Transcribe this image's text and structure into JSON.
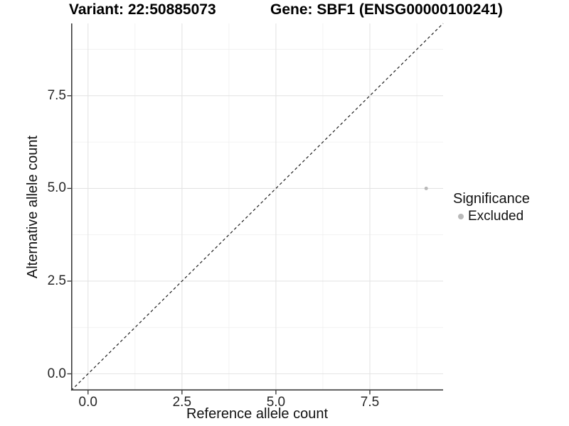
{
  "chart_data": {
    "type": "scatter",
    "title_left": "Variant: 22:50885073",
    "title_right": "Gene: SBF1 (ENSG00000100241)",
    "xlabel": "Reference allele count",
    "ylabel": "Alternative allele count",
    "xlim": [
      -0.45,
      9.45
    ],
    "ylim": [
      -0.45,
      9.45
    ],
    "x_ticks": {
      "values": [
        0,
        2.5,
        5,
        7.5
      ],
      "labels": [
        "0.0",
        "2.5",
        "5.0",
        "7.5"
      ]
    },
    "y_ticks": {
      "values": [
        0,
        2.5,
        5,
        7.5
      ],
      "labels": [
        "0.0",
        "2.5",
        "5.0",
        "7.5"
      ]
    },
    "x_minor": [
      1.25,
      3.75,
      6.25,
      8.75
    ],
    "y_minor": [
      1.25,
      3.75,
      6.25,
      8.75
    ],
    "grid": "major+minor",
    "identity_line": {
      "style": "dashed",
      "slope": 1,
      "intercept": 0
    },
    "series": [
      {
        "name": "Excluded",
        "color": "#b9b9b9",
        "points": [
          {
            "x": 9,
            "y": 5
          }
        ]
      }
    ],
    "legend": {
      "title": "Significance",
      "position": "right",
      "items": [
        {
          "label": "Excluded",
          "color": "#b9b9b9"
        }
      ]
    }
  },
  "colors": {
    "background": "#ffffff",
    "axis": "#3d3d3d",
    "grid_major": "#e4e4e4",
    "grid_minor": "#efefef",
    "identity_line": "#1f1f1f",
    "point": "#b9b9b9",
    "tick_text": "#262626",
    "title_text": "#000000"
  }
}
